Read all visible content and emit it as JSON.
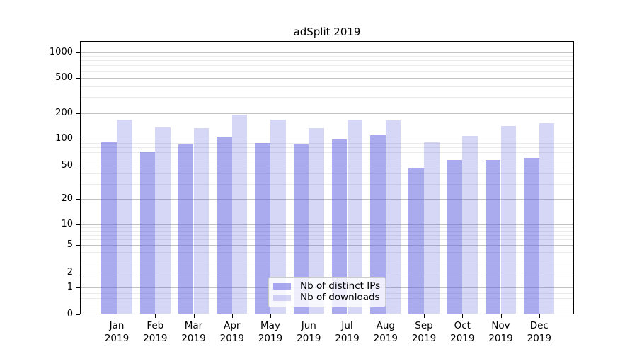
{
  "chart_data": {
    "type": "bar",
    "title": "adSplit 2019",
    "x_categories": [
      "Jan",
      "Feb",
      "Mar",
      "Apr",
      "May",
      "Jun",
      "Jul",
      "Aug",
      "Sep",
      "Oct",
      "Nov",
      "Dec"
    ],
    "x_year": "2019",
    "series": [
      {
        "name": "Nb of distinct IPs",
        "color": "#5555dd",
        "opacity": 0.5,
        "values": [
          92,
          72,
          86,
          106,
          90,
          86,
          98,
          110,
          47,
          58,
          58,
          61
        ]
      },
      {
        "name": "Nb of downloads",
        "color": "#5555dd",
        "opacity": 0.24,
        "values": [
          168,
          135,
          133,
          190,
          166,
          133,
          168,
          164,
          91,
          108,
          142,
          153
        ]
      }
    ],
    "y_axis": {
      "scale": "symlog",
      "ticks": [
        0,
        1,
        2,
        5,
        10,
        20,
        50,
        100,
        200,
        500,
        1000
      ],
      "tick_labels": [
        "0",
        "1",
        "2",
        "5",
        "10",
        "20",
        "50",
        "100",
        "200",
        "500",
        "1000"
      ],
      "minor_ticks": [
        0.2,
        0.4,
        0.6,
        0.8,
        3,
        4,
        6,
        7,
        8,
        9,
        30,
        40,
        60,
        70,
        80,
        90,
        300,
        400,
        600,
        700,
        800,
        900
      ]
    },
    "legend_position": "lower center",
    "grid": {
      "major": true,
      "minor": true
    }
  },
  "colors": {
    "bar_fill": "#5555dd",
    "bar_dark_rendered": "#aaaaee",
    "bar_light_rendered": "#d8d8f6",
    "grid_major": "#c3c3c3",
    "grid_minor": "#ebebeb",
    "axis_line": "#000000",
    "legend_border": "#cccccc",
    "background": "#ffffff"
  }
}
